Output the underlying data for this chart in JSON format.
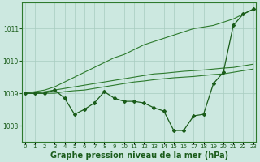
{
  "title": "Graphe pression niveau de la mer (hPa)",
  "xlabel_ticks": [
    "0",
    "1",
    "2",
    "3",
    "4",
    "5",
    "6",
    "7",
    "8",
    "9",
    "10",
    "11",
    "12",
    "13",
    "14",
    "15",
    "16",
    "17",
    "18",
    "19",
    "20",
    "21",
    "22",
    "23"
  ],
  "x": [
    0,
    1,
    2,
    3,
    4,
    5,
    6,
    7,
    8,
    9,
    10,
    11,
    12,
    13,
    14,
    15,
    16,
    17,
    18,
    19,
    20,
    21,
    22,
    23
  ],
  "line_actual": [
    1009.0,
    1009.0,
    1009.0,
    1009.1,
    1008.85,
    1008.35,
    1008.5,
    1008.7,
    1009.05,
    1008.85,
    1008.75,
    1008.75,
    1008.7,
    1008.55,
    1008.45,
    1007.85,
    1007.85,
    1008.3,
    1008.35,
    1009.3,
    1009.65,
    1011.1,
    1011.45,
    1011.6
  ],
  "line_max": [
    1009.0,
    1009.05,
    1009.1,
    1009.2,
    1009.35,
    1009.5,
    1009.65,
    1009.8,
    1009.95,
    1010.1,
    1010.2,
    1010.35,
    1010.5,
    1010.6,
    1010.7,
    1010.8,
    1010.9,
    1011.0,
    1011.05,
    1011.1,
    1011.2,
    1011.3,
    1011.45,
    1011.6
  ],
  "line_mid": [
    1009.0,
    1009.0,
    1009.05,
    1009.1,
    1009.15,
    1009.2,
    1009.25,
    1009.3,
    1009.35,
    1009.4,
    1009.45,
    1009.5,
    1009.55,
    1009.6,
    1009.62,
    1009.65,
    1009.68,
    1009.7,
    1009.72,
    1009.75,
    1009.78,
    1009.8,
    1009.85,
    1009.9
  ],
  "line_min": [
    1009.0,
    1009.0,
    1009.0,
    1009.0,
    1009.05,
    1009.08,
    1009.1,
    1009.15,
    1009.2,
    1009.25,
    1009.3,
    1009.35,
    1009.38,
    1009.42,
    1009.45,
    1009.48,
    1009.5,
    1009.52,
    1009.55,
    1009.58,
    1009.6,
    1009.65,
    1009.7,
    1009.75
  ],
  "bg_color": "#cce8e0",
  "line_color_actual": "#1a5c1a",
  "line_color_envelope": "#2d7a2d",
  "ylim": [
    1007.5,
    1011.8
  ],
  "yticks": [
    1008,
    1009,
    1010,
    1011
  ],
  "grid_color": "#a8ccc0",
  "title_color": "#1a5c1a",
  "title_fontsize": 7.0,
  "tick_fontsize": 5.5
}
